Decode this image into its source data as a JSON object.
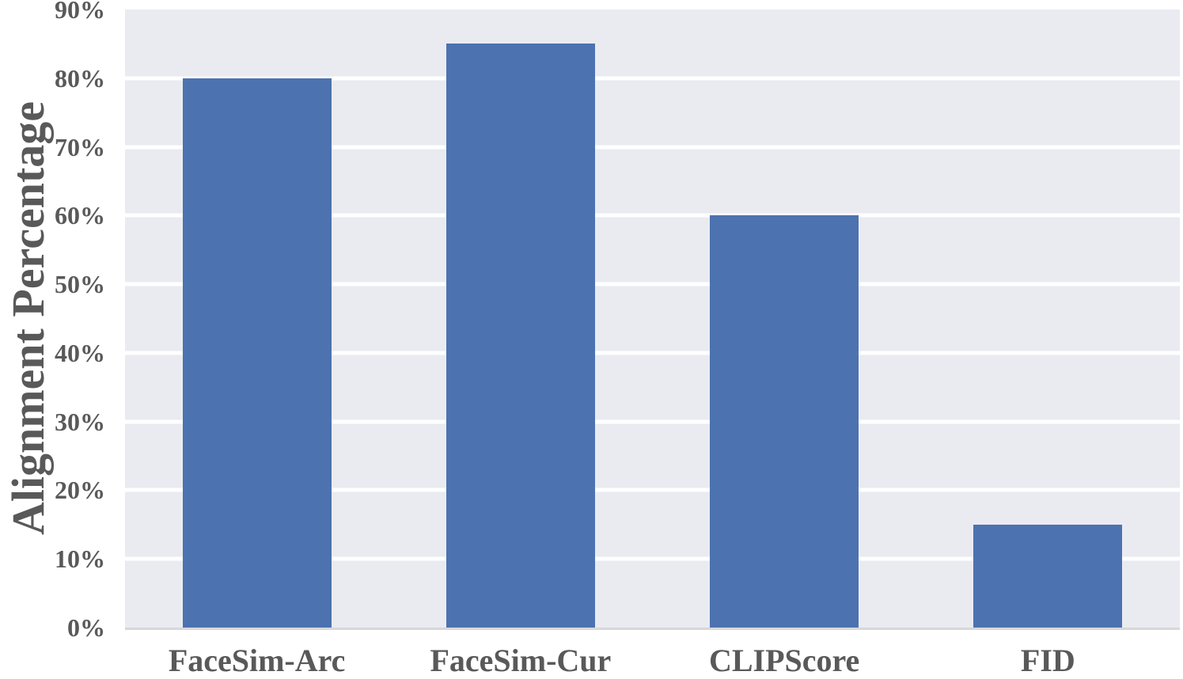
{
  "chart_data": {
    "type": "bar",
    "title": "",
    "categories": [
      "FaceSim-Arc",
      "FaceSim-Cur",
      "CLIPScore",
      "FID"
    ],
    "values": [
      80,
      85,
      60,
      15
    ],
    "value_unit": "%",
    "xlabel": "",
    "ylabel": "Alignment Percentage",
    "ylim": [
      0,
      90
    ],
    "ytick_step": 10,
    "ytick_labels": [
      "0%",
      "10%",
      "20%",
      "30%",
      "40%",
      "50%",
      "60%",
      "70%",
      "80%",
      "90%"
    ],
    "grid": "horizontal-white-lines",
    "legend": "none",
    "colors": {
      "bar": "#4C72B0",
      "plot_background": "#EAEBF1",
      "gridline": "#FFFFFF",
      "axis_line": "#D8D8DB",
      "text": "#595959",
      "page_background": "#FFFFFF"
    }
  }
}
